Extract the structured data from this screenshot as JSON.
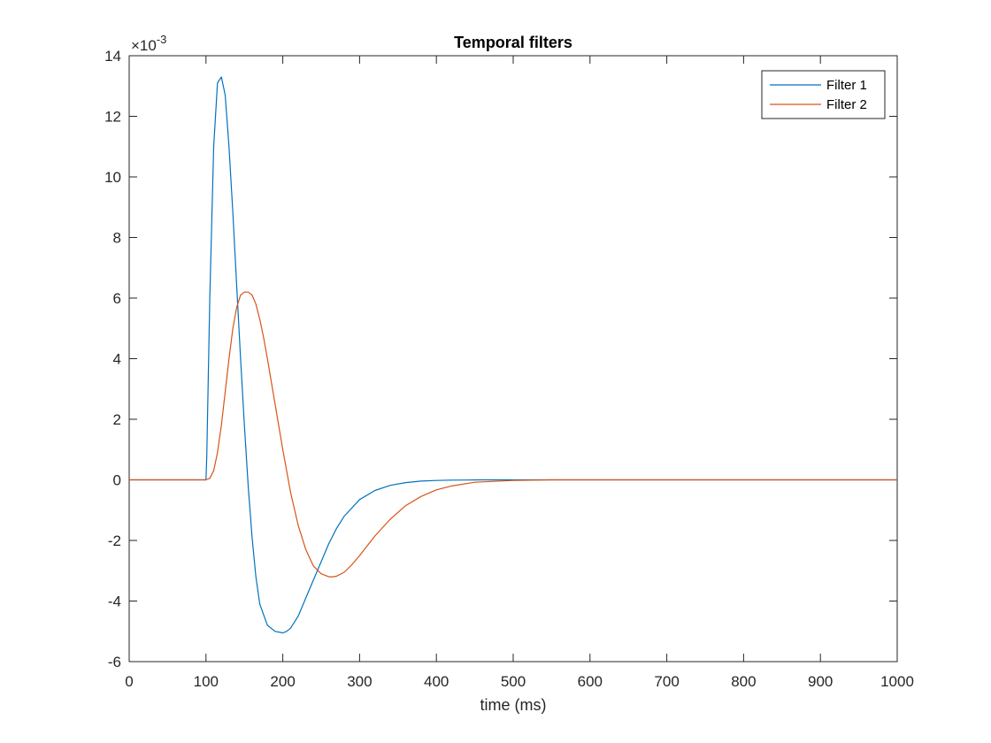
{
  "chart_data": {
    "type": "line",
    "title": "Temporal filters",
    "xlabel": "time (ms)",
    "ylabel": "",
    "xlim": [
      0,
      1000
    ],
    "ylim": [
      -6,
      14
    ],
    "y_exponent_label": "×10",
    "y_exponent_power": "-3",
    "x_ticks": [
      "0",
      "100",
      "200",
      "300",
      "400",
      "500",
      "600",
      "700",
      "800",
      "900",
      "1000"
    ],
    "y_ticks": [
      "-6",
      "-4",
      "-2",
      "0",
      "2",
      "4",
      "6",
      "8",
      "10",
      "12",
      "14"
    ],
    "x_tick_values": [
      0,
      100,
      200,
      300,
      400,
      500,
      600,
      700,
      800,
      900,
      1000
    ],
    "y_tick_values": [
      -6,
      -4,
      -2,
      0,
      2,
      4,
      6,
      8,
      10,
      12,
      14
    ],
    "grid": false,
    "legend_position": "top-right",
    "series": [
      {
        "name": "Filter 1",
        "color": "#0072bd",
        "x": [
          0,
          100,
          101,
          105,
          110,
          115,
          120,
          125,
          130,
          135,
          140,
          145,
          150,
          155,
          160,
          165,
          170,
          180,
          190,
          200,
          205,
          210,
          220,
          230,
          240,
          250,
          260,
          270,
          280,
          300,
          320,
          340,
          360,
          380,
          400,
          420,
          440,
          460,
          500,
          550,
          1000
        ],
        "y": [
          0,
          0,
          0.8,
          6.0,
          11.0,
          13.1,
          13.3,
          12.7,
          11.0,
          8.8,
          6.4,
          4.0,
          1.8,
          -0.2,
          -1.9,
          -3.2,
          -4.1,
          -4.8,
          -5.0,
          -5.05,
          -5.0,
          -4.9,
          -4.5,
          -3.9,
          -3.3,
          -2.7,
          -2.1,
          -1.6,
          -1.2,
          -0.65,
          -0.35,
          -0.18,
          -0.09,
          -0.04,
          -0.02,
          -0.01,
          -0.005,
          0,
          0,
          0,
          0
        ]
      },
      {
        "name": "Filter 2",
        "color": "#d95319",
        "x": [
          0,
          100,
          105,
          110,
          115,
          120,
          125,
          130,
          135,
          140,
          145,
          150,
          155,
          160,
          165,
          170,
          175,
          180,
          190,
          200,
          210,
          220,
          230,
          240,
          250,
          260,
          265,
          270,
          280,
          290,
          300,
          320,
          340,
          360,
          380,
          400,
          420,
          450,
          500,
          550,
          600,
          1000
        ],
        "y": [
          0,
          0,
          0.05,
          0.3,
          0.9,
          1.8,
          2.9,
          4.0,
          5.0,
          5.7,
          6.1,
          6.2,
          6.2,
          6.1,
          5.8,
          5.3,
          4.7,
          4.0,
          2.5,
          1.0,
          -0.4,
          -1.5,
          -2.3,
          -2.85,
          -3.1,
          -3.2,
          -3.2,
          -3.18,
          -3.05,
          -2.8,
          -2.5,
          -1.85,
          -1.3,
          -0.85,
          -0.55,
          -0.33,
          -0.2,
          -0.08,
          -0.02,
          0,
          0,
          0
        ]
      }
    ]
  }
}
